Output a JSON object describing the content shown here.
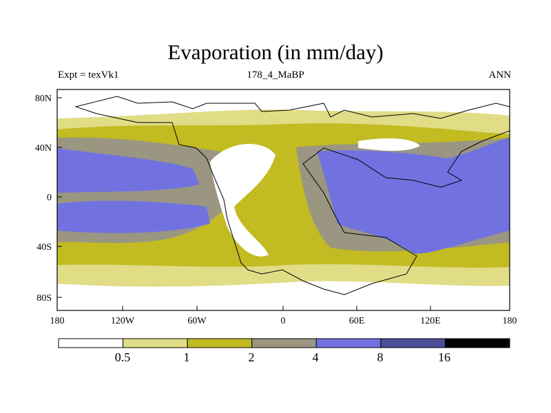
{
  "title": "Evaporation (in mm/day)",
  "subtitle": {
    "left": "Expt = texVk1",
    "center": "178_4_MaBP",
    "right": "ANN"
  },
  "axes": {
    "x_ticks": [
      "180",
      "120W",
      "60W",
      "0",
      "60E",
      "120E",
      "180"
    ],
    "y_ticks": [
      "80N",
      "40N",
      "0",
      "40S",
      "80S"
    ],
    "lon_range": [
      -180,
      180
    ],
    "lat_range": [
      -90,
      90
    ]
  },
  "colorbar": {
    "levels": [
      "0.5",
      "1",
      "2",
      "4",
      "8",
      "16"
    ],
    "colors": [
      "#ffffff",
      "#e0dd86",
      "#c2bb22",
      "#9a9682",
      "#7172e0",
      "#4d4e9a",
      "#000000"
    ]
  }
}
